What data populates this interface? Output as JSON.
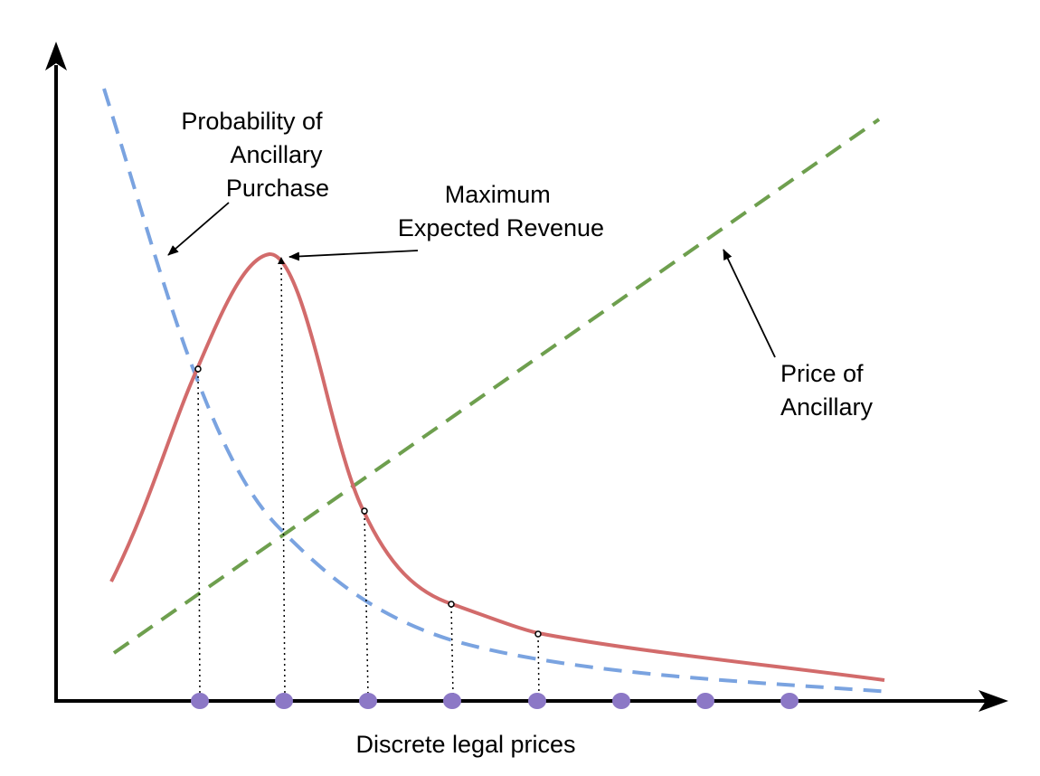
{
  "diagram": {
    "labels": {
      "probability_lines": [
        "Probability of",
        "Ancillary",
        "Purchase"
      ],
      "max_revenue_lines": [
        "Maximum",
        "Expected Revenue"
      ],
      "price_lines": [
        "Price of",
        "Ancillary"
      ],
      "x_axis": "Discrete legal prices"
    },
    "colors": {
      "axis": "#000000",
      "revenue_curve": "#d26b6b",
      "probability_curve": "#7aa3e0",
      "price_line": "#6e9f4e",
      "price_point": "#8c78c6",
      "marker": "#000000"
    },
    "curves": {
      "expected_revenue": "solid red-rose curve peaking at the maximum expected revenue",
      "probability_of_purchase": "dashed blue decreasing curve",
      "price_of_ancillary": "dashed green increasing line"
    },
    "discrete_price_point_count": 8
  }
}
